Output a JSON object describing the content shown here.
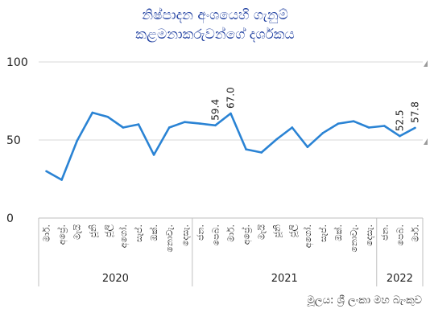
{
  "chart_data": {
    "type": "line",
    "title_lines": [
      "නිෂ්පාදන අංශයෙහි ගැනුම්",
      "කළමනාකරුවන්ගේ දර්ශකය"
    ],
    "source": "මූලය: ශ්‍රී ලංකා මහ බැංකුව",
    "ylim": [
      0,
      100
    ],
    "yticks": [
      0,
      50,
      100
    ],
    "grid": "horizontal",
    "line_color": "#2a83d4",
    "categories": [
      "මාර්.",
      "අප්‍රේ.",
      "මැයි",
      "ජූනි",
      "ජූලි",
      "අගෝ.",
      "සැප්.",
      "ඔක්.",
      "නොවැ.",
      "දෙසැ.",
      "ජන.",
      "පෙබ.",
      "මාර්.",
      "අප්‍රේ.",
      "මැයි",
      "ජූනි",
      "ජූලි",
      "අගෝ.",
      "සැප්.",
      "ඔක්.",
      "නොවැ.",
      "දෙසැ.",
      "ජන.",
      "පෙබ.",
      "මාර්."
    ],
    "values": [
      30.0,
      24.5,
      49.5,
      67.5,
      64.8,
      58.0,
      60.0,
      40.5,
      58.0,
      61.5,
      60.5,
      59.4,
      67.0,
      44.0,
      42.0,
      50.5,
      58.0,
      45.5,
      54.5,
      60.5,
      62.0,
      58.0,
      59.0,
      52.5,
      57.8
    ],
    "year_groups": [
      {
        "label": "2020",
        "start": 0,
        "end": 9
      },
      {
        "label": "2021",
        "start": 10,
        "end": 21
      },
      {
        "label": "2022",
        "start": 22,
        "end": 24
      }
    ],
    "data_labels": [
      {
        "index": 11,
        "text": "59.4"
      },
      {
        "index": 12,
        "text": "67.0"
      },
      {
        "index": 23,
        "text": "52.5"
      },
      {
        "index": 24,
        "text": "57.8"
      }
    ]
  }
}
